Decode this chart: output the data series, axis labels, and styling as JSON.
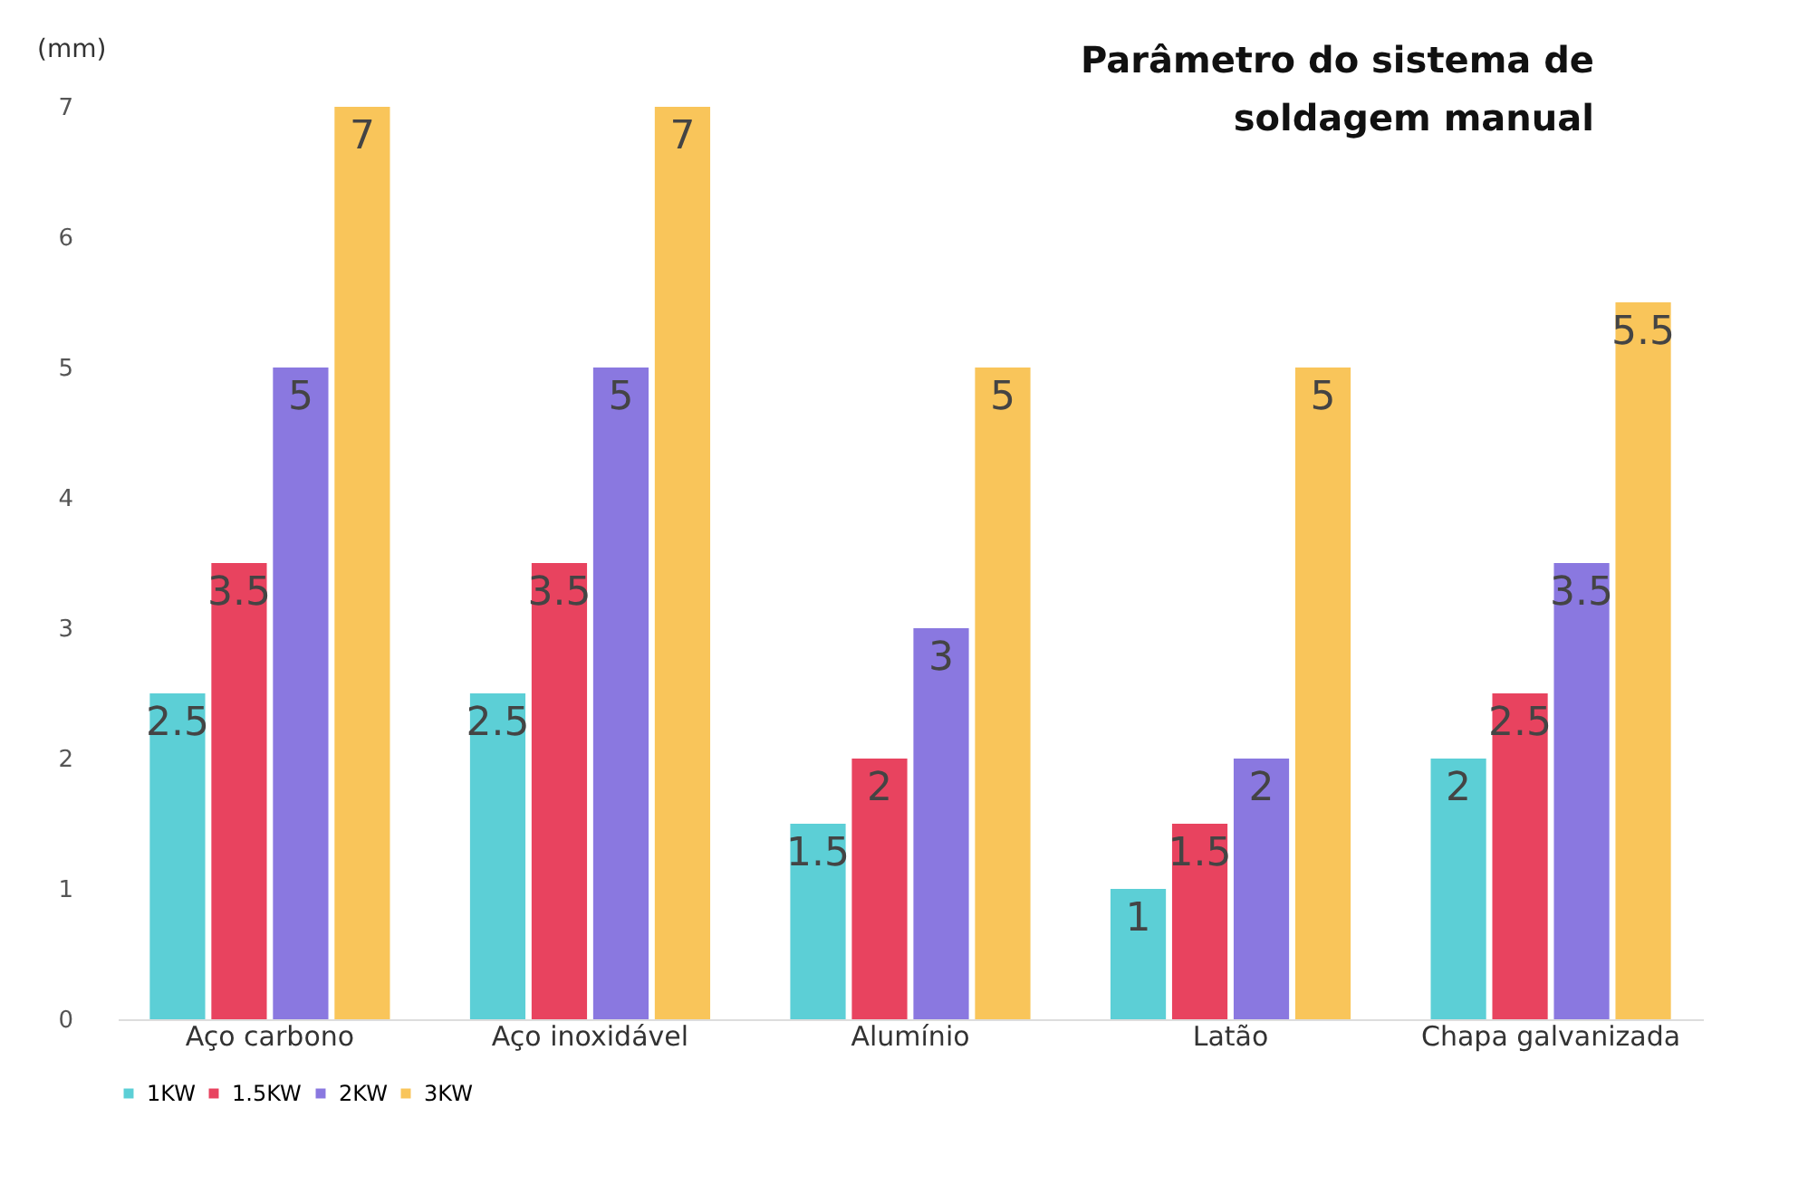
{
  "chart_data": {
    "type": "bar",
    "title": "Parâmetro do sistema de\nsoldagem manual",
    "ylabel": "(mm)",
    "categories": [
      "Aço carbono",
      "Aço inoxidável",
      "Alumínio",
      "Latão",
      "Chapa galvanizada"
    ],
    "series": [
      {
        "name": "1KW",
        "color": "#5ccfd6",
        "values": [
          2.5,
          2.5,
          1.5,
          1,
          2
        ]
      },
      {
        "name": "1.5KW",
        "color": "#e8435f",
        "values": [
          3.5,
          3.5,
          2,
          1.5,
          2.5
        ]
      },
      {
        "name": "2KW",
        "color": "#8a78e0",
        "values": [
          5,
          5,
          3,
          2,
          3.5
        ]
      },
      {
        "name": "3KW",
        "color": "#f9c55a",
        "values": [
          7,
          7,
          5,
          5,
          5.5
        ]
      }
    ],
    "ylim": [
      0,
      7
    ],
    "yticks": [
      0,
      1,
      2,
      3,
      4,
      5,
      6,
      7
    ],
    "data_labels": true,
    "grid": false,
    "legend": "bottom"
  }
}
